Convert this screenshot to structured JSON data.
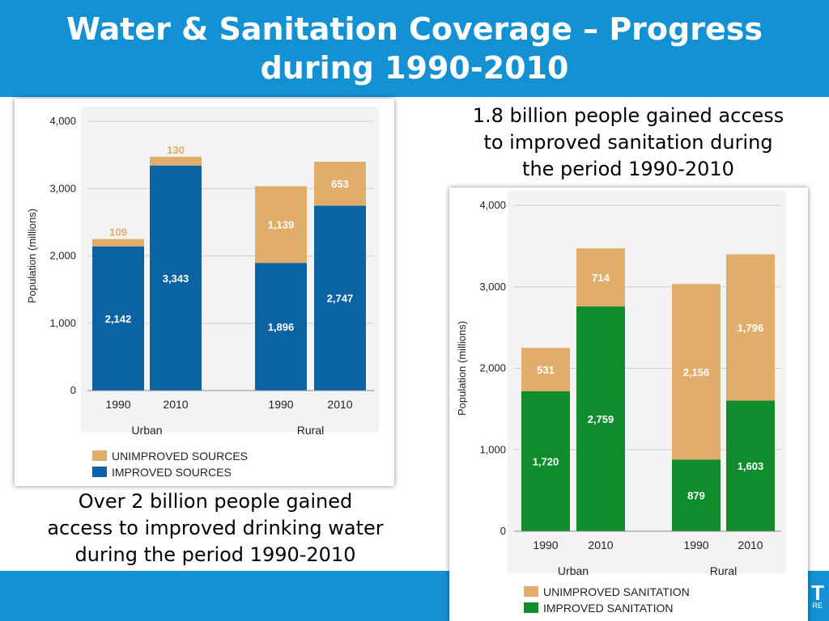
{
  "slide": {
    "title_line1": "Water & Sanitation Coverage – Progress",
    "title_line2": "during 1990-2010",
    "colors": {
      "header": "#1391d3"
    }
  },
  "captions": {
    "water": [
      "Over 2 billion people gained",
      "access to improved drinking water",
      "during the period 1990-2010"
    ],
    "sanitation": [
      "1.8 billion people gained access",
      "to improved sanitation during",
      "the period 1990-2010"
    ]
  },
  "footer": {
    "logo_text": "T",
    "sub_text": "RE"
  },
  "chart_data": [
    {
      "type": "bar",
      "stacked": true,
      "categories": [
        "1990",
        "2010",
        "1990",
        "2010"
      ],
      "groups": [
        {
          "name": "Urban",
          "categories": [
            "1990",
            "2010"
          ]
        },
        {
          "name": "Rural",
          "categories": [
            "1990",
            "2010"
          ]
        }
      ],
      "series": [
        {
          "name": "IMPROVED SOURCES",
          "values": [
            2142,
            3343,
            1896,
            2747
          ],
          "labels": [
            "2,142",
            "3,343",
            "1,896",
            "2,747"
          ],
          "color": "#0b63a3"
        },
        {
          "name": "UNIMPROVED SOURCES",
          "values": [
            109,
            130,
            1139,
            653
          ],
          "labels": [
            "109",
            "130",
            "1,139",
            "653"
          ],
          "color": "#e0ad6a"
        }
      ],
      "ylabel": "Population (millions)",
      "yticks": [
        0,
        1000,
        2000,
        3000,
        4000
      ],
      "ytick_labels": [
        "0",
        "1,000",
        "2,000",
        "3,000",
        "4,000"
      ],
      "ylim": [
        0,
        4000
      ],
      "grid": true,
      "legend": [
        "UNIMPROVED SOURCES",
        "IMPROVED SOURCES"
      ],
      "legend_position": "bottom-left"
    },
    {
      "type": "bar",
      "stacked": true,
      "categories": [
        "1990",
        "2010",
        "1990",
        "2010"
      ],
      "groups": [
        {
          "name": "Urban",
          "categories": [
            "1990",
            "2010"
          ]
        },
        {
          "name": "Rural",
          "categories": [
            "1990",
            "2010"
          ]
        }
      ],
      "series": [
        {
          "name": "IMPROVED SANITATION",
          "values": [
            1720,
            2759,
            879,
            1603
          ],
          "labels": [
            "1,720",
            "2,759",
            "879",
            "1,603"
          ],
          "color": "#0f8c2c"
        },
        {
          "name": "UNIMPROVED SANITATION",
          "values": [
            531,
            714,
            2156,
            1796
          ],
          "labels": [
            "531",
            "714",
            "2,156",
            "1,796"
          ],
          "color": "#e0ad6a"
        }
      ],
      "ylabel": "Population (millions)",
      "yticks": [
        0,
        1000,
        2000,
        3000,
        4000
      ],
      "ytick_labels": [
        "0",
        "1,000",
        "2,000",
        "3,000",
        "4,000"
      ],
      "ylim": [
        0,
        4000
      ],
      "grid": true,
      "legend": [
        "UNIMPROVED SANITATION",
        "IMPROVED SANITATION"
      ],
      "legend_position": "bottom-left"
    }
  ]
}
